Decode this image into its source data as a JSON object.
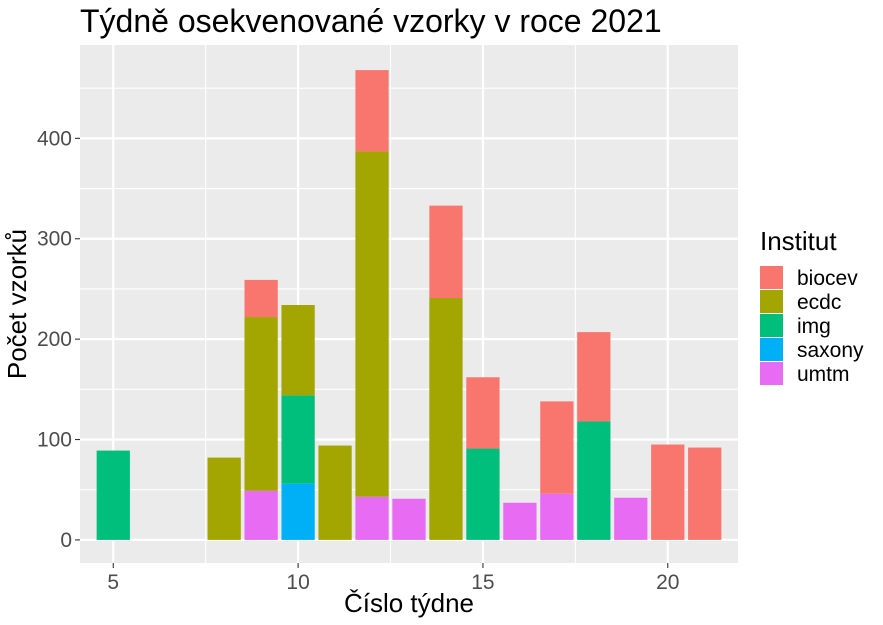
{
  "chart_data": {
    "type": "bar",
    "stacked": true,
    "title": "Týdně osekvenované vzorky v roce 2021",
    "xlabel": "Číslo týdne",
    "ylabel": "Počet vzorků",
    "xlim": [
      4.1,
      21.9
    ],
    "ylim": [
      -23,
      493
    ],
    "x_ticks": [
      5,
      10,
      15,
      20
    ],
    "y_ticks": [
      0,
      100,
      200,
      300,
      400
    ],
    "grid": true,
    "legend": {
      "title": "Institut",
      "position": "right",
      "entries": [
        {
          "name": "biocev",
          "color": "#F8766D"
        },
        {
          "name": "ecdc",
          "color": "#A3A500"
        },
        {
          "name": "img",
          "color": "#00BF7D"
        },
        {
          "name": "saxony",
          "color": "#00B0F6"
        },
        {
          "name": "umtm",
          "color": "#E76BF3"
        }
      ]
    },
    "stack_order": [
      "umtm",
      "saxony",
      "img",
      "ecdc",
      "biocev"
    ],
    "x": [
      5,
      8,
      9,
      10,
      11,
      12,
      13,
      14,
      15,
      16,
      17,
      18,
      19,
      20,
      21
    ],
    "series": [
      {
        "name": "biocev",
        "color": "#F8766D",
        "values": [
          0,
          0,
          37,
          0,
          0,
          81,
          0,
          92,
          71,
          0,
          92,
          89,
          0,
          95,
          92
        ]
      },
      {
        "name": "ecdc",
        "color": "#A3A500",
        "values": [
          0,
          82,
          173,
          90,
          94,
          344,
          0,
          241,
          0,
          0,
          0,
          0,
          0,
          0,
          0
        ]
      },
      {
        "name": "img",
        "color": "#00BF7D",
        "values": [
          89,
          0,
          0,
          88,
          0,
          0,
          0,
          0,
          91,
          0,
          0,
          118,
          0,
          0,
          0
        ]
      },
      {
        "name": "saxony",
        "color": "#00B0F6",
        "values": [
          0,
          0,
          0,
          56,
          0,
          0,
          0,
          0,
          0,
          0,
          0,
          0,
          0,
          0,
          0
        ]
      },
      {
        "name": "umtm",
        "color": "#E76BF3",
        "values": [
          0,
          0,
          49,
          0,
          0,
          43,
          41,
          0,
          0,
          37,
          46,
          0,
          42,
          0,
          0
        ]
      }
    ]
  }
}
